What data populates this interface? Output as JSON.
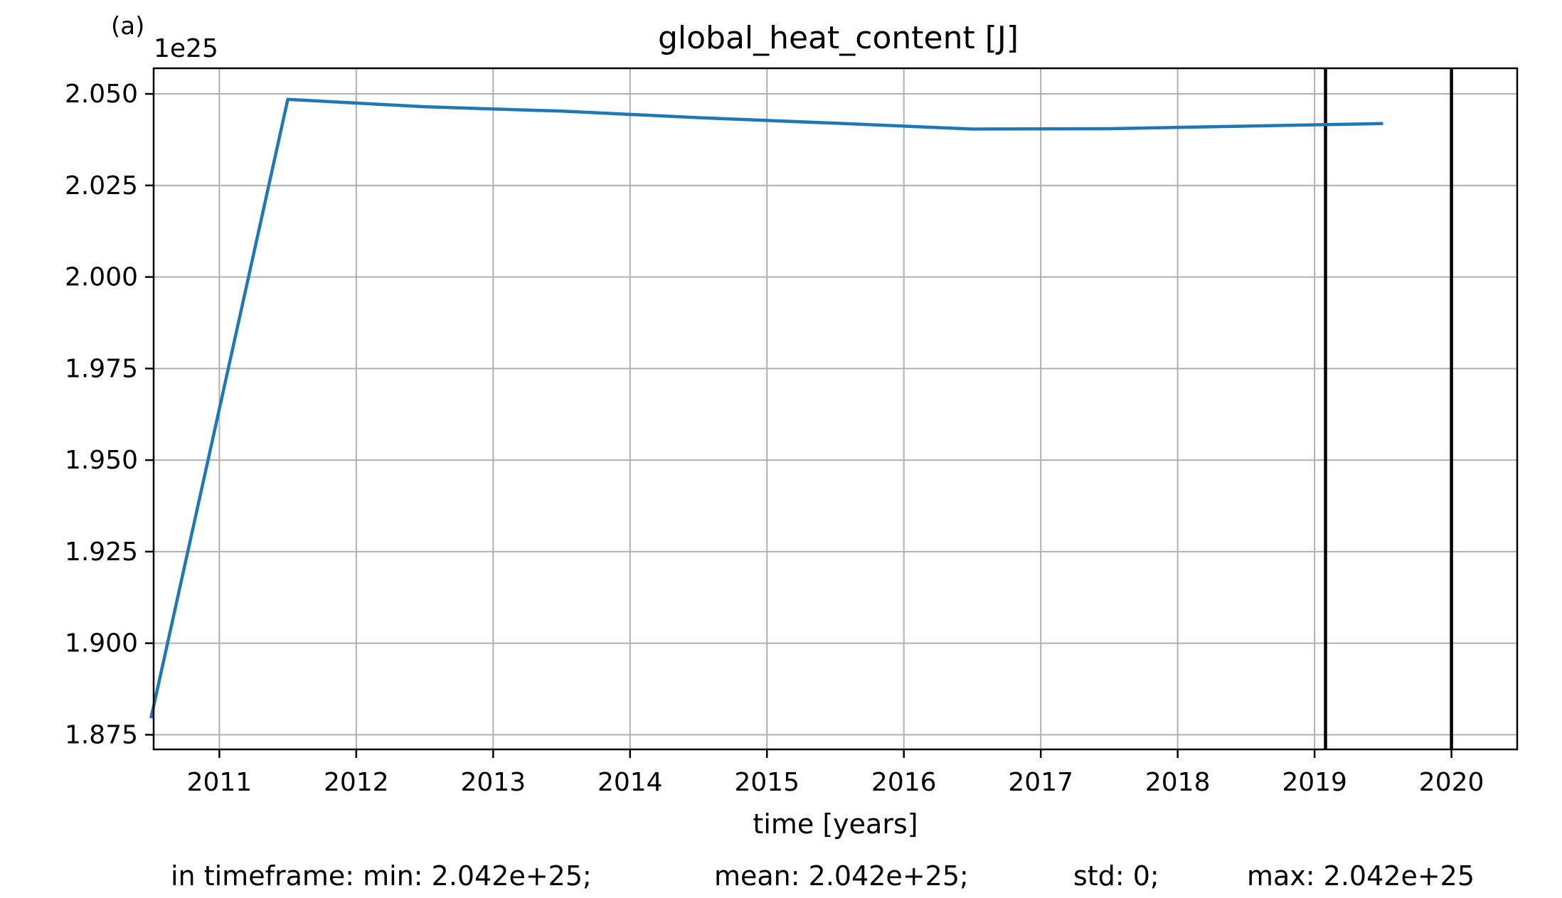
{
  "chart_data": {
    "type": "line",
    "panel_label": "(a)",
    "title": "global_heat_content [J]",
    "xlabel": "time [years]",
    "ylabel": "",
    "y_offset_label": "1e25",
    "xlim": [
      2010.52,
      2020.48
    ],
    "ylim": [
      1.871,
      2.057
    ],
    "x_ticks": [
      2011,
      2012,
      2013,
      2014,
      2015,
      2016,
      2017,
      2018,
      2019,
      2020
    ],
    "x_tick_labels": [
      "2011",
      "2012",
      "2013",
      "2014",
      "2015",
      "2016",
      "2017",
      "2018",
      "2019",
      "2020"
    ],
    "y_ticks": [
      1.875,
      1.9,
      1.925,
      1.95,
      1.975,
      2.0,
      2.025,
      2.05
    ],
    "y_tick_labels": [
      "1.875",
      "1.900",
      "1.925",
      "1.950",
      "1.975",
      "2.000",
      "2.025",
      "2.050"
    ],
    "grid": true,
    "series": [
      {
        "color": "#1f77b4",
        "x": [
          2010.5,
          2011.5,
          2012.5,
          2013.5,
          2014.5,
          2015.5,
          2016.5,
          2017.5,
          2018.5,
          2019.5
        ],
        "values": [
          1.8795,
          2.0485,
          2.0465,
          2.0453,
          2.0435,
          2.042,
          2.0404,
          2.0405,
          2.0412,
          2.0419
        ]
      }
    ],
    "vertical_lines": [
      {
        "x": 2019.08,
        "color": "#000000"
      },
      {
        "x": 2020.0,
        "color": "#000000"
      }
    ]
  },
  "stats": {
    "min": "in timeframe: min: 2.042e+25;",
    "mean": "mean: 2.042e+25;",
    "std": "std: 0;",
    "max": "max: 2.042e+25"
  }
}
